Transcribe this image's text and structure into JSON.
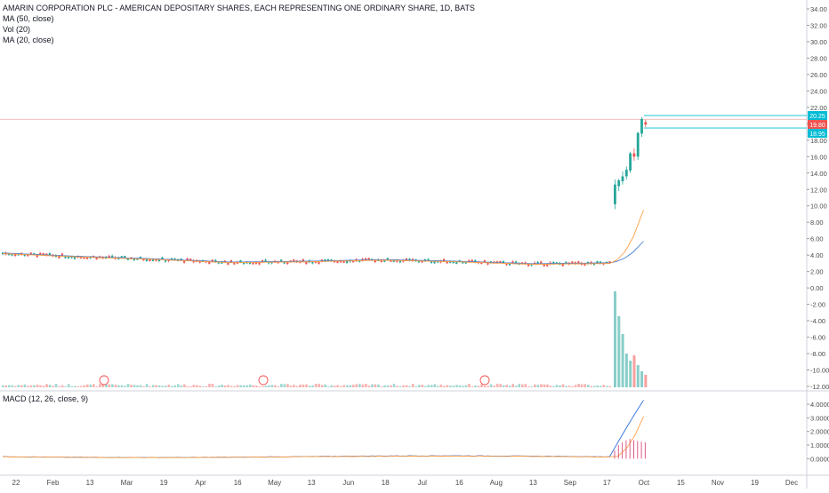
{
  "legend": {
    "title": "AMARIN CORPORATION PLC - AMERICAN DEPOSITARY SHARES, EACH REPRESENTING ONE ORDINARY SHARE, 1D, BATS",
    "ma50": "MA (50, close)",
    "vol": "Vol (20)",
    "ma20": "MA (20, close)",
    "macd": "MACD (12, 26, close, 9)"
  },
  "colors": {
    "up": "#26a69a",
    "down": "#ef5350",
    "ma50": "#4a7fd1",
    "ma20": "#ff9f43",
    "macd_line": "#2f6fd6",
    "signal_line": "#ff9f43",
    "hist": "#e05a8a",
    "badge": "#ef5350",
    "level": "#00bcd4"
  },
  "price_axis": {
    "ticks": [
      "34.00",
      "32.00",
      "30.00",
      "28.00",
      "26.00",
      "24.00",
      "22.00",
      "20.00",
      "18.00",
      "16.00",
      "14.00",
      "12.00",
      "10.00",
      "8.00",
      "6.00",
      "4.00",
      "2.00",
      "0.00",
      "-2.00",
      "-4.00",
      "-6.00",
      "-8.00",
      "-10.00",
      "-12.00"
    ]
  },
  "macd_axis": {
    "ticks": [
      "4.0000",
      "3.0000",
      "2.0000",
      "1.0000",
      "0.0000"
    ]
  },
  "x_axis": {
    "labels": [
      "22",
      "Feb",
      "13",
      "Mar",
      "19",
      "Apr",
      "16",
      "May",
      "13",
      "Jun",
      "18",
      "Jul",
      "16",
      "Aug",
      "13",
      "Sep",
      "17",
      "Oct",
      "15",
      "Nov",
      "19",
      "Dec"
    ]
  },
  "price_labels": {
    "high": "20.25",
    "last": "19.80",
    "low": "18.95"
  },
  "earnings_badges": [
    "E",
    "E",
    "E"
  ],
  "chart_data": {
    "type": "candlestick",
    "ylim": [
      -12,
      34
    ],
    "macd_ylim": [
      -0.5,
      4.4
    ],
    "baseline_segments": [
      {
        "x_label": "22",
        "value": 4.2
      },
      {
        "x_label": "Feb",
        "value": 3.8
      },
      {
        "x_label": "Mar",
        "value": 3.5
      },
      {
        "x_label": "Apr",
        "value": 3.1
      },
      {
        "x_label": "May",
        "value": 3.2
      },
      {
        "x_label": "Jun",
        "value": 3.4
      },
      {
        "x_label": "Jul",
        "value": 3.2
      },
      {
        "x_label": "Aug",
        "value": 2.9
      },
      {
        "x_label": "Sep",
        "value": 3.0
      }
    ],
    "breakout_candles": [
      {
        "open": 10.2,
        "high": 13.2,
        "low": 9.6,
        "close": 12.6
      },
      {
        "open": 12.4,
        "high": 13.3,
        "low": 11.8,
        "close": 13.1
      },
      {
        "open": 13.0,
        "high": 14.2,
        "low": 12.6,
        "close": 13.6
      },
      {
        "open": 13.6,
        "high": 14.8,
        "low": 13.2,
        "close": 14.4
      },
      {
        "open": 14.3,
        "high": 16.6,
        "low": 14.0,
        "close": 16.4
      },
      {
        "open": 16.4,
        "high": 17.0,
        "low": 15.5,
        "close": 16.0
      },
      {
        "open": 16.0,
        "high": 19.0,
        "low": 15.6,
        "close": 18.9
      },
      {
        "open": 18.8,
        "high": 20.8,
        "low": 18.4,
        "close": 20.6
      },
      {
        "open": 20.2,
        "high": 20.5,
        "low": 19.6,
        "close": 19.9
      }
    ],
    "ma20_end": 9.5,
    "ma50_end": 5.7,
    "macd_end": 4.3,
    "signal_end": 3.1
  }
}
